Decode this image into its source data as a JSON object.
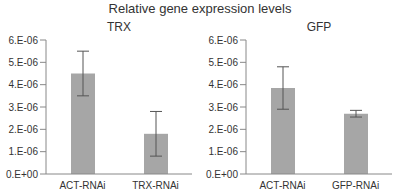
{
  "title": "Relative gene expression levels",
  "chart_data": [
    {
      "type": "bar",
      "title": "TRX",
      "categories": [
        "ACT-RNAi",
        "TRX-RNAi"
      ],
      "values": [
        4.5e-06,
        1.8e-06
      ],
      "errors": [
        1e-06,
        1e-06
      ],
      "color": "#a6a6a6",
      "ylim": [
        0,
        6e-06
      ],
      "yticks": [
        {
          "value": 0,
          "label": "0.E+00"
        },
        {
          "value": 1e-06,
          "label": "1.E-06"
        },
        {
          "value": 2e-06,
          "label": "2.E-06"
        },
        {
          "value": 3e-06,
          "label": "3.E-06"
        },
        {
          "value": 4e-06,
          "label": "4.E-06"
        },
        {
          "value": 5e-06,
          "label": "5.E-06"
        },
        {
          "value": 6e-06,
          "label": "6.E-06"
        }
      ],
      "grid": false
    },
    {
      "type": "bar",
      "title": "GFP",
      "categories": [
        "ACT-RNAi",
        "GFP-RNAi"
      ],
      "values": [
        3.85e-06,
        2.7e-06
      ],
      "errors": [
        9.5e-07,
        1.5e-07
      ],
      "color": "#a6a6a6",
      "ylim": [
        0,
        6e-06
      ],
      "yticks": [
        {
          "value": 0,
          "label": "0.E+00"
        },
        {
          "value": 1e-06,
          "label": "1.E-06"
        },
        {
          "value": 2e-06,
          "label": "2.E-06"
        },
        {
          "value": 3e-06,
          "label": "3.E-06"
        },
        {
          "value": 4e-06,
          "label": "4.E-06"
        },
        {
          "value": 5e-06,
          "label": "5.E-06"
        },
        {
          "value": 6e-06,
          "label": "6.E-06"
        }
      ],
      "grid": false
    }
  ]
}
